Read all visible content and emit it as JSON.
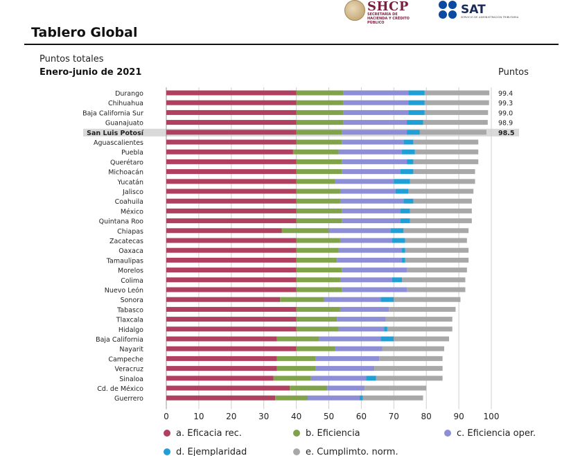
{
  "header": {
    "shcp_logo": "SHCP",
    "shcp_sub": "SECRETARÍA DE HACIENDA Y CRÉDITO PÚBLICO",
    "sat_logo": "SAT",
    "sat_sub": "SERVICIO DE ADMINISTRACIÓN TRIBUTARIA",
    "title": "Tablero Global"
  },
  "chart_meta": {
    "subtitle": "Puntos totales",
    "period": "Enero-junio de 2021",
    "unit_label": "Puntos",
    "highlight": "San Luis Potosí"
  },
  "chart_data": {
    "type": "bar",
    "orientation": "horizontal",
    "stacked": true,
    "xlim": [
      0,
      100
    ],
    "xticks": [
      0,
      10,
      20,
      30,
      40,
      50,
      60,
      70,
      80,
      90,
      100
    ],
    "grid": "vertical",
    "legend_position": "bottom",
    "categories": [
      "Durango",
      "Chihuahua",
      "Baja California Sur",
      "Guanajuato",
      "San Luis Potosí",
      "Aguascalientes",
      "Puebla",
      "Querétaro",
      "Michoacán",
      "Yucatán",
      "Jalisco",
      "Coahuila",
      "México",
      "Quintana Roo",
      "Chiapas",
      "Zacatecas",
      "Oaxaca",
      "Tamaulipas",
      "Morelos",
      "Colima",
      "Nuevo León",
      "Sonora",
      "Tabasco",
      "Tlaxcala",
      "Hidalgo",
      "Baja California",
      "Nayarit",
      "Campeche",
      "Veracruz",
      "Sinaloa",
      "Cd. de México",
      "Guerrero"
    ],
    "totals": [
      "99.4",
      "99.3",
      "99.0",
      "98.9",
      "98.5"
    ],
    "series": [
      {
        "name": "a. Eficacia rec.",
        "color": "#b0405f",
        "values": [
          40,
          40,
          40,
          40,
          40,
          40,
          39,
          40,
          40,
          40,
          40,
          40,
          40,
          40,
          35.5,
          40,
          40,
          40,
          40,
          40,
          40,
          35,
          40,
          40,
          40,
          34,
          40,
          34,
          34,
          33,
          38,
          33.5
        ]
      },
      {
        "name": "b. Eficiencia",
        "color": "#7fa24a",
        "values": [
          14.5,
          14.5,
          14.5,
          14.5,
          14,
          14,
          14,
          14,
          14,
          12,
          13.5,
          13.5,
          14,
          14,
          14.5,
          13.5,
          13,
          12.5,
          14,
          13.5,
          14,
          13.5,
          13.5,
          12.5,
          13,
          13,
          12,
          12,
          12,
          11.5,
          11.5,
          10
        ]
      },
      {
        "name": "c. Eficiencia oper.",
        "color": "#8e8ed6",
        "values": [
          20,
          20,
          20,
          19.5,
          20,
          19,
          19.5,
          20,
          18,
          18,
          17,
          19.5,
          18,
          18,
          19,
          16,
          19.5,
          20,
          20,
          16,
          20,
          17.5,
          15,
          15,
          14,
          19,
          14.5,
          19.5,
          18,
          17,
          11.5,
          16
        ]
      },
      {
        "name": "d. Ejemplaridad",
        "color": "#1f9fd6",
        "values": [
          5,
          5,
          5,
          5,
          4,
          3,
          4,
          2,
          4,
          5,
          4,
          3,
          3,
          3,
          4,
          4,
          1,
          1,
          0,
          3,
          0,
          4,
          0,
          0,
          1,
          4,
          0,
          0,
          0,
          3,
          0,
          1
        ]
      },
      {
        "name": "e. Cumplimto. norm.",
        "color": "#a8a8a8",
        "values": [
          19.9,
          19.8,
          19.5,
          19.9,
          20.5,
          20,
          19.5,
          20,
          19,
          20,
          20,
          18,
          19,
          19,
          20,
          19,
          19.5,
          19.5,
          18.5,
          19.5,
          18,
          20.5,
          20.5,
          20.5,
          20,
          17,
          19,
          19.5,
          21,
          20.5,
          19,
          18.5
        ]
      }
    ]
  }
}
